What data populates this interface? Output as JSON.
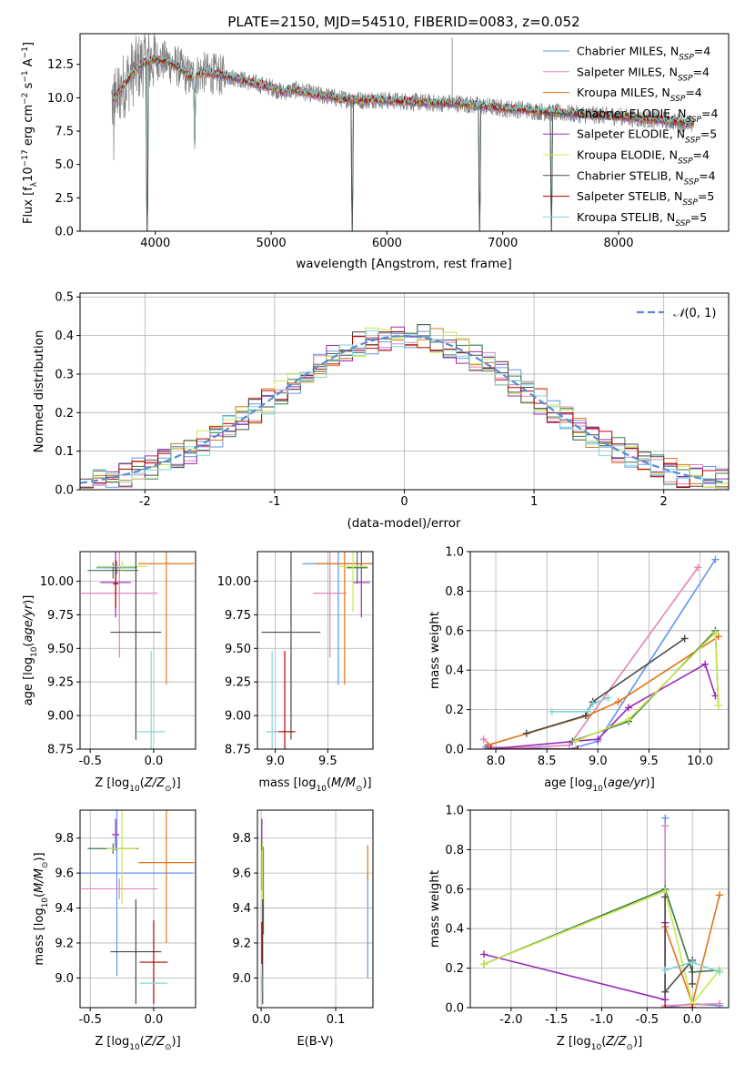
{
  "figure": {
    "title": "PLATE=2150, MJD=54510, FIBERID=0083, z=0.052"
  },
  "models": [
    {
      "name": "Chabrier MILES",
      "nssp": "4",
      "color": "#6495ed"
    },
    {
      "name": "Salpeter MILES",
      "nssp": "4",
      "color": "#e583b8"
    },
    {
      "name": "Kroupa MILES",
      "nssp": "4",
      "color": "#e0761a"
    },
    {
      "name": "Chabrier ELODIE",
      "nssp": "4",
      "color": "#3a7a4a"
    },
    {
      "name": "Salpeter ELODIE",
      "nssp": "5",
      "color": "#9a2aba"
    },
    {
      "name": "Kroupa ELODIE",
      "nssp": "4",
      "color": "#c8e84a"
    },
    {
      "name": "Chabrier STELIB",
      "nssp": "4",
      "color": "#4a4a4a"
    },
    {
      "name": "Salpeter STELIB",
      "nssp": "5",
      "color": "#b40000"
    },
    {
      "name": "Kroupa STELIB",
      "nssp": "5",
      "color": "#7fd6d6"
    }
  ],
  "chart_data": [
    {
      "id": "spectrum",
      "type": "line",
      "xlabel": "wavelength [Angstrom, rest frame]",
      "ylabel": "Flux [f_λ 10^-17 erg cm^-2 s^-1 A^-1]",
      "xlim": [
        3350,
        8950
      ],
      "ylim": [
        0,
        14.8
      ],
      "xticks": [
        4000,
        5000,
        6000,
        7000,
        8000
      ],
      "yticks": [
        0.0,
        2.5,
        5.0,
        7.5,
        10.0,
        12.5
      ],
      "legend_position": "top-right",
      "data": {
        "wavelength_range": [
          3620,
          8650
        ],
        "continuum": [
          [
            3620,
            9.6
          ],
          [
            3700,
            10.6
          ],
          [
            3800,
            11.8
          ],
          [
            3900,
            12.6
          ],
          [
            4000,
            12.9
          ],
          [
            4100,
            12.7
          ],
          [
            4200,
            12.3
          ],
          [
            4300,
            11.5
          ],
          [
            4400,
            11.9
          ],
          [
            4500,
            11.8
          ],
          [
            4600,
            11.6
          ],
          [
            4700,
            11.5
          ],
          [
            4800,
            11.2
          ],
          [
            4900,
            11.0
          ],
          [
            5000,
            10.8
          ],
          [
            5100,
            10.4
          ],
          [
            5200,
            10.6
          ],
          [
            5300,
            10.4
          ],
          [
            5400,
            10.2
          ],
          [
            5500,
            10.1
          ],
          [
            5600,
            9.9
          ],
          [
            5700,
            9.9
          ],
          [
            5800,
            9.8
          ],
          [
            5900,
            9.9
          ],
          [
            6000,
            9.8
          ],
          [
            6200,
            9.7
          ],
          [
            6400,
            9.6
          ],
          [
            6600,
            9.6
          ],
          [
            6800,
            9.4
          ],
          [
            7000,
            9.2
          ],
          [
            7200,
            9.1
          ],
          [
            7400,
            8.9
          ],
          [
            7600,
            8.8
          ],
          [
            7800,
            8.7
          ],
          [
            8000,
            8.6
          ],
          [
            8200,
            8.4
          ],
          [
            8400,
            8.3
          ],
          [
            8650,
            8.0
          ]
        ],
        "absorption_features": [
          [
            3930,
            0.0
          ],
          [
            4340,
            6.2
          ],
          [
            5700,
            0.0
          ],
          [
            6800,
            0.0
          ],
          [
            7420,
            0.0
          ]
        ],
        "emission_features": [
          [
            6563,
            14.5
          ]
        ]
      }
    },
    {
      "id": "residuals",
      "type": "line",
      "xlabel": "(data-model)/error",
      "ylabel": "Normed distribution",
      "xlim": [
        -2.5,
        2.5
      ],
      "ylim": [
        0,
        0.51
      ],
      "xticks": [
        -2,
        -1,
        0,
        1,
        2
      ],
      "yticks": [
        0.0,
        0.1,
        0.2,
        0.3,
        0.4,
        0.5
      ],
      "legend": "N(0,1)",
      "legend_position": "top-right",
      "reference_curve": "gaussian N(0,1)",
      "histogram_bin_width": 0.1
    },
    {
      "id": "age_vs_Z",
      "type": "scatter",
      "xlabel": "Z [log10(Z/Z⊙)]",
      "ylabel": "age [log10(age/yr)]",
      "xlim": [
        -0.58,
        0.33
      ],
      "ylim": [
        8.75,
        10.22
      ],
      "xticks": [
        -0.5,
        0.0
      ],
      "yticks": [
        8.75,
        9.0,
        9.25,
        9.5,
        9.75,
        10.0
      ],
      "points": [
        {
          "x": -0.29,
          "y": 10.1,
          "xerr": 0.16,
          "yerr": 0.05
        },
        {
          "x": -0.27,
          "y": 9.91,
          "xerr": 0.3,
          "yerr": 0.48
        },
        {
          "x": 0.1,
          "y": 10.13,
          "xerr": 0.22,
          "yerr": 0.9
        },
        {
          "x": -0.32,
          "y": 10.08,
          "xerr": 0.2,
          "yerr": 0.06
        },
        {
          "x": -0.3,
          "y": 9.99,
          "xerr": 0.12,
          "yerr": 0.26
        },
        {
          "x": -0.25,
          "y": 10.11,
          "xerr": 0.2,
          "yerr": 0.04
        },
        {
          "x": -0.14,
          "y": 9.62,
          "xerr": 0.2,
          "yerr": 0.8
        },
        {
          "x": -0.3,
          "y": 9.98,
          "xerr": 0.02,
          "yerr": 0.18
        },
        {
          "x": -0.02,
          "y": 8.88,
          "xerr": 0.11,
          "yerr": 0.6
        }
      ]
    },
    {
      "id": "age_vs_mass",
      "type": "scatter",
      "xlabel": "mass [log10(M/M⊙)]",
      "ylabel": "",
      "xlim": [
        8.83,
        9.93
      ],
      "ylim": [
        8.75,
        10.22
      ],
      "xticks": [
        9.0,
        9.5
      ],
      "yticks": [
        8.75,
        9.0,
        9.25,
        9.5,
        9.75,
        10.0
      ],
      "points": [
        {
          "x": 9.6,
          "y": 10.13,
          "xerr": 0.34,
          "yerr": 0.9
        },
        {
          "x": 9.52,
          "y": 9.91,
          "xerr": 0.16,
          "yerr": 0.48
        },
        {
          "x": 9.66,
          "y": 10.13,
          "xerr": 0.28,
          "yerr": 0.9
        },
        {
          "x": 9.78,
          "y": 10.1,
          "xerr": 0.1,
          "yerr": 0.12
        },
        {
          "x": 9.82,
          "y": 9.99,
          "xerr": 0.08,
          "yerr": 0.26
        },
        {
          "x": 9.74,
          "y": 10.11,
          "xerr": 0.14,
          "yerr": 0.34
        },
        {
          "x": 9.15,
          "y": 9.62,
          "xerr": 0.28,
          "yerr": 0.8
        },
        {
          "x": 9.09,
          "y": 8.88,
          "xerr": 0.1,
          "yerr": 0.6
        },
        {
          "x": 8.97,
          "y": 8.88,
          "xerr": 0.06,
          "yerr": 0.6
        }
      ]
    },
    {
      "id": "weight_vs_age",
      "type": "line",
      "xlabel": "age [log10(age/yr)]",
      "ylabel": "mass weight",
      "xlim": [
        7.75,
        10.28
      ],
      "ylim": [
        0,
        1.0
      ],
      "xticks": [
        8.0,
        8.5,
        9.0,
        9.5,
        10.0
      ],
      "yticks": [
        0.0,
        0.2,
        0.4,
        0.6,
        0.8,
        1.0
      ],
      "series": [
        {
          "points": [
            [
              7.9,
              0.01
            ],
            [
              8.72,
              0.0
            ],
            [
              9.0,
              0.04
            ],
            [
              10.15,
              0.96
            ]
          ]
        },
        {
          "points": [
            [
              7.88,
              0.05
            ],
            [
              8.0,
              0.0
            ],
            [
              8.72,
              0.02
            ],
            [
              9.98,
              0.92
            ]
          ]
        },
        {
          "points": [
            [
              7.92,
              0.02
            ],
            [
              8.9,
              0.17
            ],
            [
              9.2,
              0.24
            ],
            [
              10.18,
              0.57
            ]
          ]
        },
        {
          "points": [
            [
              8.75,
              0.04
            ],
            [
              9.3,
              0.14
            ],
            [
              10.15,
              0.6
            ],
            [
              10.18,
              0.22
            ]
          ]
        },
        {
          "points": [
            [
              7.92,
              0.0
            ],
            [
              9.0,
              0.05
            ],
            [
              9.3,
              0.21
            ],
            [
              10.05,
              0.43
            ],
            [
              10.15,
              0.27
            ]
          ]
        },
        {
          "points": [
            [
              8.78,
              0.04
            ],
            [
              9.3,
              0.15
            ],
            [
              10.15,
              0.59
            ],
            [
              10.18,
              0.22
            ]
          ]
        },
        {
          "points": [
            [
              8.3,
              0.08
            ],
            [
              8.88,
              0.17
            ],
            [
              8.95,
              0.24
            ],
            [
              9.85,
              0.56
            ]
          ]
        },
        {
          "points": [
            [
              7.95,
              0.0
            ],
            [
              8.8,
              0.0
            ]
          ]
        },
        {
          "points": [
            [
              8.55,
              0.19
            ],
            [
              8.9,
              0.19
            ],
            [
              8.95,
              0.23
            ],
            [
              9.1,
              0.26
            ]
          ]
        }
      ]
    },
    {
      "id": "mass_vs_Z",
      "type": "scatter",
      "xlabel": "Z [log10(Z/Z⊙)]",
      "ylabel": "mass [log10(M/M⊙)]",
      "xlim": [
        -0.58,
        0.33
      ],
      "ylim": [
        8.83,
        9.96
      ],
      "xticks": [
        -0.5,
        0.0
      ],
      "yticks": [
        9.0,
        9.2,
        9.4,
        9.6,
        9.8
      ],
      "points": [
        {
          "x": -0.29,
          "y": 9.6,
          "xerr": 0.6,
          "yerr": 0.59
        },
        {
          "x": -0.27,
          "y": 9.51,
          "xerr": 0.3,
          "yerr": 0.06
        },
        {
          "x": 0.1,
          "y": 9.66,
          "xerr": 0.22,
          "yerr": 0.46
        },
        {
          "x": -0.32,
          "y": 9.74,
          "xerr": 0.2,
          "yerr": 0.03
        },
        {
          "x": -0.3,
          "y": 9.82,
          "xerr": 0.03,
          "yerr": 0.09
        },
        {
          "x": -0.25,
          "y": 9.74,
          "xerr": 0.12,
          "yerr": 0.32
        },
        {
          "x": -0.14,
          "y": 9.15,
          "xerr": 0.2,
          "yerr": 0.3
        },
        {
          "x": 0.0,
          "y": 9.09,
          "xerr": 0.11,
          "yerr": 0.24
        },
        {
          "x": 0.0,
          "y": 8.97,
          "xerr": 0.11,
          "yerr": 0.0
        }
      ]
    },
    {
      "id": "mass_vs_EBV",
      "type": "scatter",
      "xlabel": "E(B-V)",
      "ylabel": "",
      "xlim": [
        -0.005,
        0.15
      ],
      "ylim": [
        8.83,
        9.96
      ],
      "xticks": [
        0.0,
        0.1
      ],
      "yticks": [
        9.0,
        9.2,
        9.4,
        9.6,
        9.8
      ],
      "points": [
        {
          "x": 0.143,
          "y": 9.3,
          "yerr": 0.3
        },
        {
          "x": 0.001,
          "y": 9.65,
          "yerr": 0.15
        },
        {
          "x": 0.143,
          "y": 9.66,
          "yerr": 0.1
        },
        {
          "x": 0.003,
          "y": 9.5,
          "yerr": 0.25
        },
        {
          "x": 0.001,
          "y": 9.82,
          "yerr": 0.09
        },
        {
          "x": 0.002,
          "y": 9.6,
          "yerr": 0.18
        },
        {
          "x": 0.002,
          "y": 9.15,
          "yerr": 0.3
        },
        {
          "x": 0.001,
          "y": 9.2,
          "yerr": 0.12
        },
        {
          "x": 0.001,
          "y": 8.97,
          "yerr": 0.05
        }
      ]
    },
    {
      "id": "weight_vs_Z",
      "type": "line",
      "xlabel": "Z [log10(Z/Z⊙)]",
      "ylabel": "mass weight",
      "xlim": [
        -2.45,
        0.4
      ],
      "ylim": [
        0,
        1.0
      ],
      "xticks": [
        -2.0,
        -1.5,
        -1.0,
        -0.5,
        0.0
      ],
      "yticks": [
        0.0,
        0.2,
        0.4,
        0.6,
        0.8,
        1.0
      ],
      "series": [
        {
          "points": [
            [
              -0.3,
              0.96
            ],
            [
              -0.3,
              0.0
            ],
            [
              0.0,
              0.02
            ],
            [
              0.3,
              0.01
            ]
          ]
        },
        {
          "points": [
            [
              -0.3,
              0.92
            ],
            [
              -0.3,
              0.01
            ],
            [
              0.3,
              0.02
            ]
          ]
        },
        {
          "points": [
            [
              -0.3,
              0.41
            ],
            [
              0.0,
              0.02
            ],
            [
              0.3,
              0.57
            ]
          ]
        },
        {
          "points": [
            [
              -2.3,
              0.22
            ],
            [
              -0.3,
              0.6
            ],
            [
              0.0,
              0.18
            ],
            [
              0.3,
              0.19
            ]
          ]
        },
        {
          "points": [
            [
              -2.3,
              0.27
            ],
            [
              -0.3,
              0.04
            ],
            [
              -0.3,
              0.43
            ]
          ]
        },
        {
          "points": [
            [
              -2.3,
              0.22
            ],
            [
              -0.3,
              0.59
            ],
            [
              0.0,
              0.02
            ],
            [
              0.3,
              0.19
            ]
          ]
        },
        {
          "points": [
            [
              -0.3,
              0.56
            ],
            [
              -0.3,
              0.08
            ],
            [
              0.0,
              0.24
            ],
            [
              0.0,
              0.12
            ]
          ]
        },
        {
          "points": [
            [
              -0.3,
              0.0
            ],
            [
              0.0,
              0.0
            ]
          ]
        },
        {
          "points": [
            [
              -0.3,
              0.19
            ],
            [
              0.0,
              0.23
            ],
            [
              0.3,
              0.18
            ]
          ]
        }
      ]
    }
  ]
}
